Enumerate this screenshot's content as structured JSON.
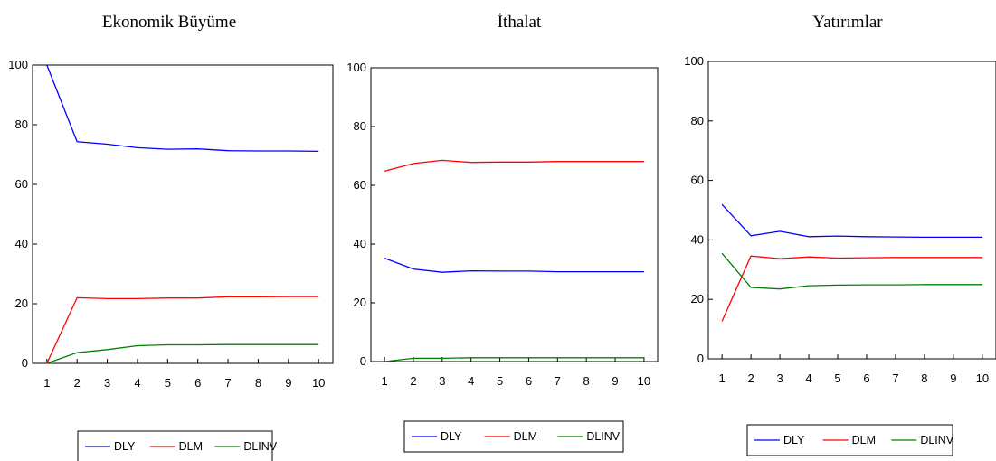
{
  "chart_data": [
    {
      "type": "line",
      "title": "Ekonomik Büyüme",
      "x": [
        1,
        2,
        3,
        4,
        5,
        6,
        7,
        8,
        9,
        10
      ],
      "x_tick_labels": [
        "1",
        "2",
        "3",
        "4",
        "5",
        "6",
        "7",
        "8",
        "9",
        "10"
      ],
      "ylim": [
        0,
        100
      ],
      "y_ticks": [
        0,
        20,
        40,
        60,
        80,
        100
      ],
      "y_tick_labels": [
        "0",
        "20",
        "40",
        "60",
        "80",
        "100"
      ],
      "grid": false,
      "legend": "bottom",
      "series": [
        {
          "name": "DLY",
          "color": "#0000ff",
          "values": [
            100,
            74.3,
            73.5,
            72.3,
            71.8,
            71.9,
            71.3,
            71.2,
            71.2,
            71.1
          ]
        },
        {
          "name": "DLM",
          "color": "#ff0000",
          "values": [
            0,
            22.0,
            21.7,
            21.7,
            21.9,
            21.9,
            22.3,
            22.3,
            22.4,
            22.4
          ]
        },
        {
          "name": "DLINV",
          "color": "#008000",
          "values": [
            0,
            3.6,
            4.6,
            5.9,
            6.2,
            6.2,
            6.3,
            6.3,
            6.3,
            6.3
          ]
        }
      ]
    },
    {
      "type": "line",
      "title": "İthalat",
      "x": [
        1,
        2,
        3,
        4,
        5,
        6,
        7,
        8,
        9,
        10
      ],
      "x_tick_labels": [
        "1",
        "2",
        "3",
        "4",
        "5",
        "6",
        "7",
        "8",
        "9",
        "10"
      ],
      "ylim": [
        0,
        100
      ],
      "y_ticks": [
        0,
        20,
        40,
        60,
        80,
        100
      ],
      "y_tick_labels": [
        "0",
        "20",
        "40",
        "60",
        "80",
        "100"
      ],
      "grid": false,
      "legend": "bottom",
      "series": [
        {
          "name": "DLY",
          "color": "#0000ff",
          "values": [
            35.2,
            31.5,
            30.4,
            30.9,
            30.8,
            30.8,
            30.6,
            30.6,
            30.6,
            30.6
          ]
        },
        {
          "name": "DLM",
          "color": "#ff0000",
          "values": [
            64.8,
            67.4,
            68.5,
            67.8,
            67.9,
            67.9,
            68.1,
            68.1,
            68.1,
            68.1
          ]
        },
        {
          "name": "DLINV",
          "color": "#008000",
          "values": [
            0,
            1.1,
            1.1,
            1.3,
            1.3,
            1.3,
            1.3,
            1.3,
            1.3,
            1.3
          ]
        }
      ]
    },
    {
      "type": "line",
      "title": "Yatırımlar",
      "x": [
        1,
        2,
        3,
        4,
        5,
        6,
        7,
        8,
        9,
        10
      ],
      "x_tick_labels": [
        "1",
        "2",
        "3",
        "4",
        "5",
        "6",
        "7",
        "8",
        "9",
        "10"
      ],
      "ylim": [
        0,
        100
      ],
      "y_ticks": [
        0,
        20,
        40,
        60,
        80,
        100
      ],
      "y_tick_labels": [
        "0",
        "20",
        "40",
        "60",
        "80",
        "100"
      ],
      "grid": false,
      "legend": "bottom",
      "series": [
        {
          "name": "DLY",
          "color": "#0000ff",
          "values": [
            51.9,
            41.4,
            42.9,
            41.1,
            41.3,
            41.1,
            41.0,
            40.9,
            40.9,
            40.9
          ]
        },
        {
          "name": "DLM",
          "color": "#ff0000",
          "values": [
            12.6,
            34.6,
            33.7,
            34.3,
            33.9,
            34.0,
            34.1,
            34.1,
            34.1,
            34.1
          ]
        },
        {
          "name": "DLINV",
          "color": "#008000",
          "values": [
            35.5,
            24.0,
            23.5,
            24.6,
            24.8,
            24.9,
            24.9,
            25.0,
            25.0,
            25.0
          ]
        }
      ]
    }
  ]
}
